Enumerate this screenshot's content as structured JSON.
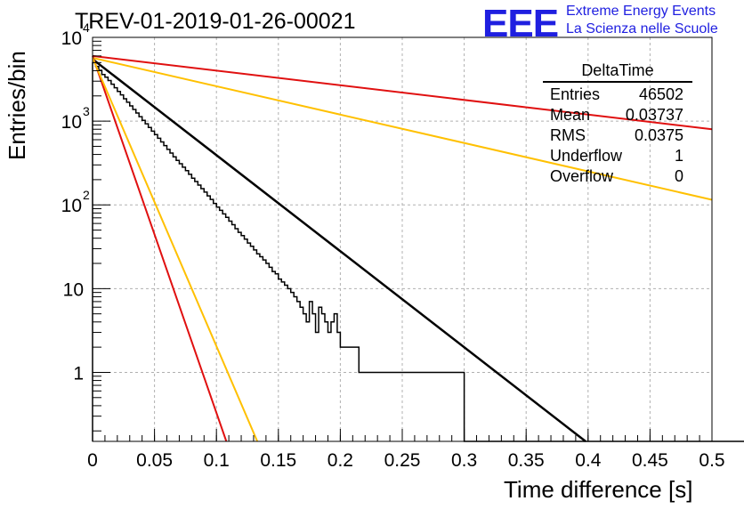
{
  "chart_data": {
    "type": "line",
    "title": "TREV-01-2019-01-26-00021",
    "xlabel": "Time difference [s]",
    "ylabel": "Entries/bin",
    "xlim": [
      0,
      0.5
    ],
    "ylim": [
      0.15,
      10000
    ],
    "yscale": "log",
    "grid": true,
    "x_ticks": [
      "0",
      "0.05",
      "0.1",
      "0.15",
      "0.2",
      "0.25",
      "0.3",
      "0.35",
      "0.4",
      "0.45",
      "0.5"
    ],
    "y_ticks": [
      {
        "value": 1,
        "base": "1",
        "exp": ""
      },
      {
        "value": 10,
        "base": "10",
        "exp": ""
      },
      {
        "value": 100,
        "base": "10",
        "exp": "2"
      },
      {
        "value": 1000,
        "base": "10",
        "exp": "3"
      },
      {
        "value": 10000,
        "base": "10",
        "exp": "4"
      }
    ],
    "histogram": {
      "name": "DeltaTime",
      "bin_width": 0.0025,
      "values": [
        5000,
        4500,
        4050,
        3600,
        3350,
        3050,
        2760,
        2500,
        2260,
        2060,
        1850,
        1680,
        1520,
        1380,
        1250,
        1130,
        1020,
        930,
        840,
        760,
        690,
        625,
        565,
        510,
        460,
        415,
        375,
        340,
        310,
        282,
        256,
        232,
        208,
        190,
        172,
        156,
        142,
        128,
        116,
        104,
        94,
        86,
        78,
        71,
        64,
        58,
        52,
        47,
        43,
        39,
        35,
        32,
        29,
        26,
        24,
        22,
        20,
        18,
        16,
        15,
        13,
        12,
        11,
        10,
        9,
        8,
        7,
        6,
        5,
        4,
        7,
        5,
        3,
        6,
        5,
        4,
        3,
        4,
        5,
        3,
        2,
        2,
        2,
        2,
        2,
        2,
        1,
        1,
        1,
        1,
        1,
        1,
        1,
        1,
        1,
        1,
        1,
        1,
        1,
        1,
        1,
        1,
        1,
        1,
        1,
        1,
        1,
        1,
        1,
        1,
        1,
        1,
        1,
        1,
        1,
        1,
        1,
        1,
        1,
        1,
        0,
        0,
        0,
        0,
        0,
        0,
        0,
        0,
        0,
        0,
        0,
        0,
        0,
        0,
        0,
        0,
        0,
        0,
        0,
        0,
        0,
        0,
        0,
        0,
        0,
        0,
        0,
        0,
        0,
        0,
        0,
        0,
        0,
        0,
        0,
        0,
        0,
        0,
        0,
        0,
        0,
        0,
        0,
        0,
        0,
        0,
        0,
        0,
        0,
        0,
        0,
        0,
        0,
        0,
        0,
        0,
        0,
        0,
        0,
        0,
        0,
        0,
        0,
        0,
        0,
        0,
        0,
        0,
        0,
        0,
        0,
        0,
        0,
        0,
        0,
        0,
        0,
        0,
        0,
        0,
        0,
        0,
        0,
        0,
        0,
        0,
        0,
        0,
        0,
        0,
        0,
        0,
        0,
        0,
        0,
        0,
        0,
        0,
        0,
        0,
        0,
        0,
        0,
        0,
        0,
        0
      ]
    },
    "fits": [
      {
        "color": "#000000",
        "points": [
          [
            0,
            5500
          ],
          [
            0.398,
            0.15
          ]
        ]
      },
      {
        "color": "#e01010",
        "points": [
          [
            0,
            6000
          ],
          [
            0.5,
            800
          ]
        ]
      },
      {
        "color": "#ffc000",
        "points": [
          [
            0,
            5700
          ],
          [
            0.5,
            115
          ]
        ]
      },
      {
        "color": "#e01010",
        "points": [
          [
            0,
            6000
          ],
          [
            0.108,
            0.15
          ]
        ]
      },
      {
        "color": "#ffc000",
        "points": [
          [
            0,
            5700
          ],
          [
            0.133,
            0.15
          ]
        ]
      }
    ],
    "stats": {
      "name": "DeltaTime",
      "rows": [
        {
          "label": "Entries",
          "value": "46502"
        },
        {
          "label": "Mean",
          "value": "0.03737"
        },
        {
          "label": "RMS",
          "value": "0.0375"
        },
        {
          "label": "Underflow",
          "value": "1"
        },
        {
          "label": "Overflow",
          "value": "0"
        }
      ]
    }
  },
  "logo": {
    "mark": "EEE",
    "line1": "Extreme Energy Events",
    "line2": "La Scienza nelle Scuole"
  }
}
